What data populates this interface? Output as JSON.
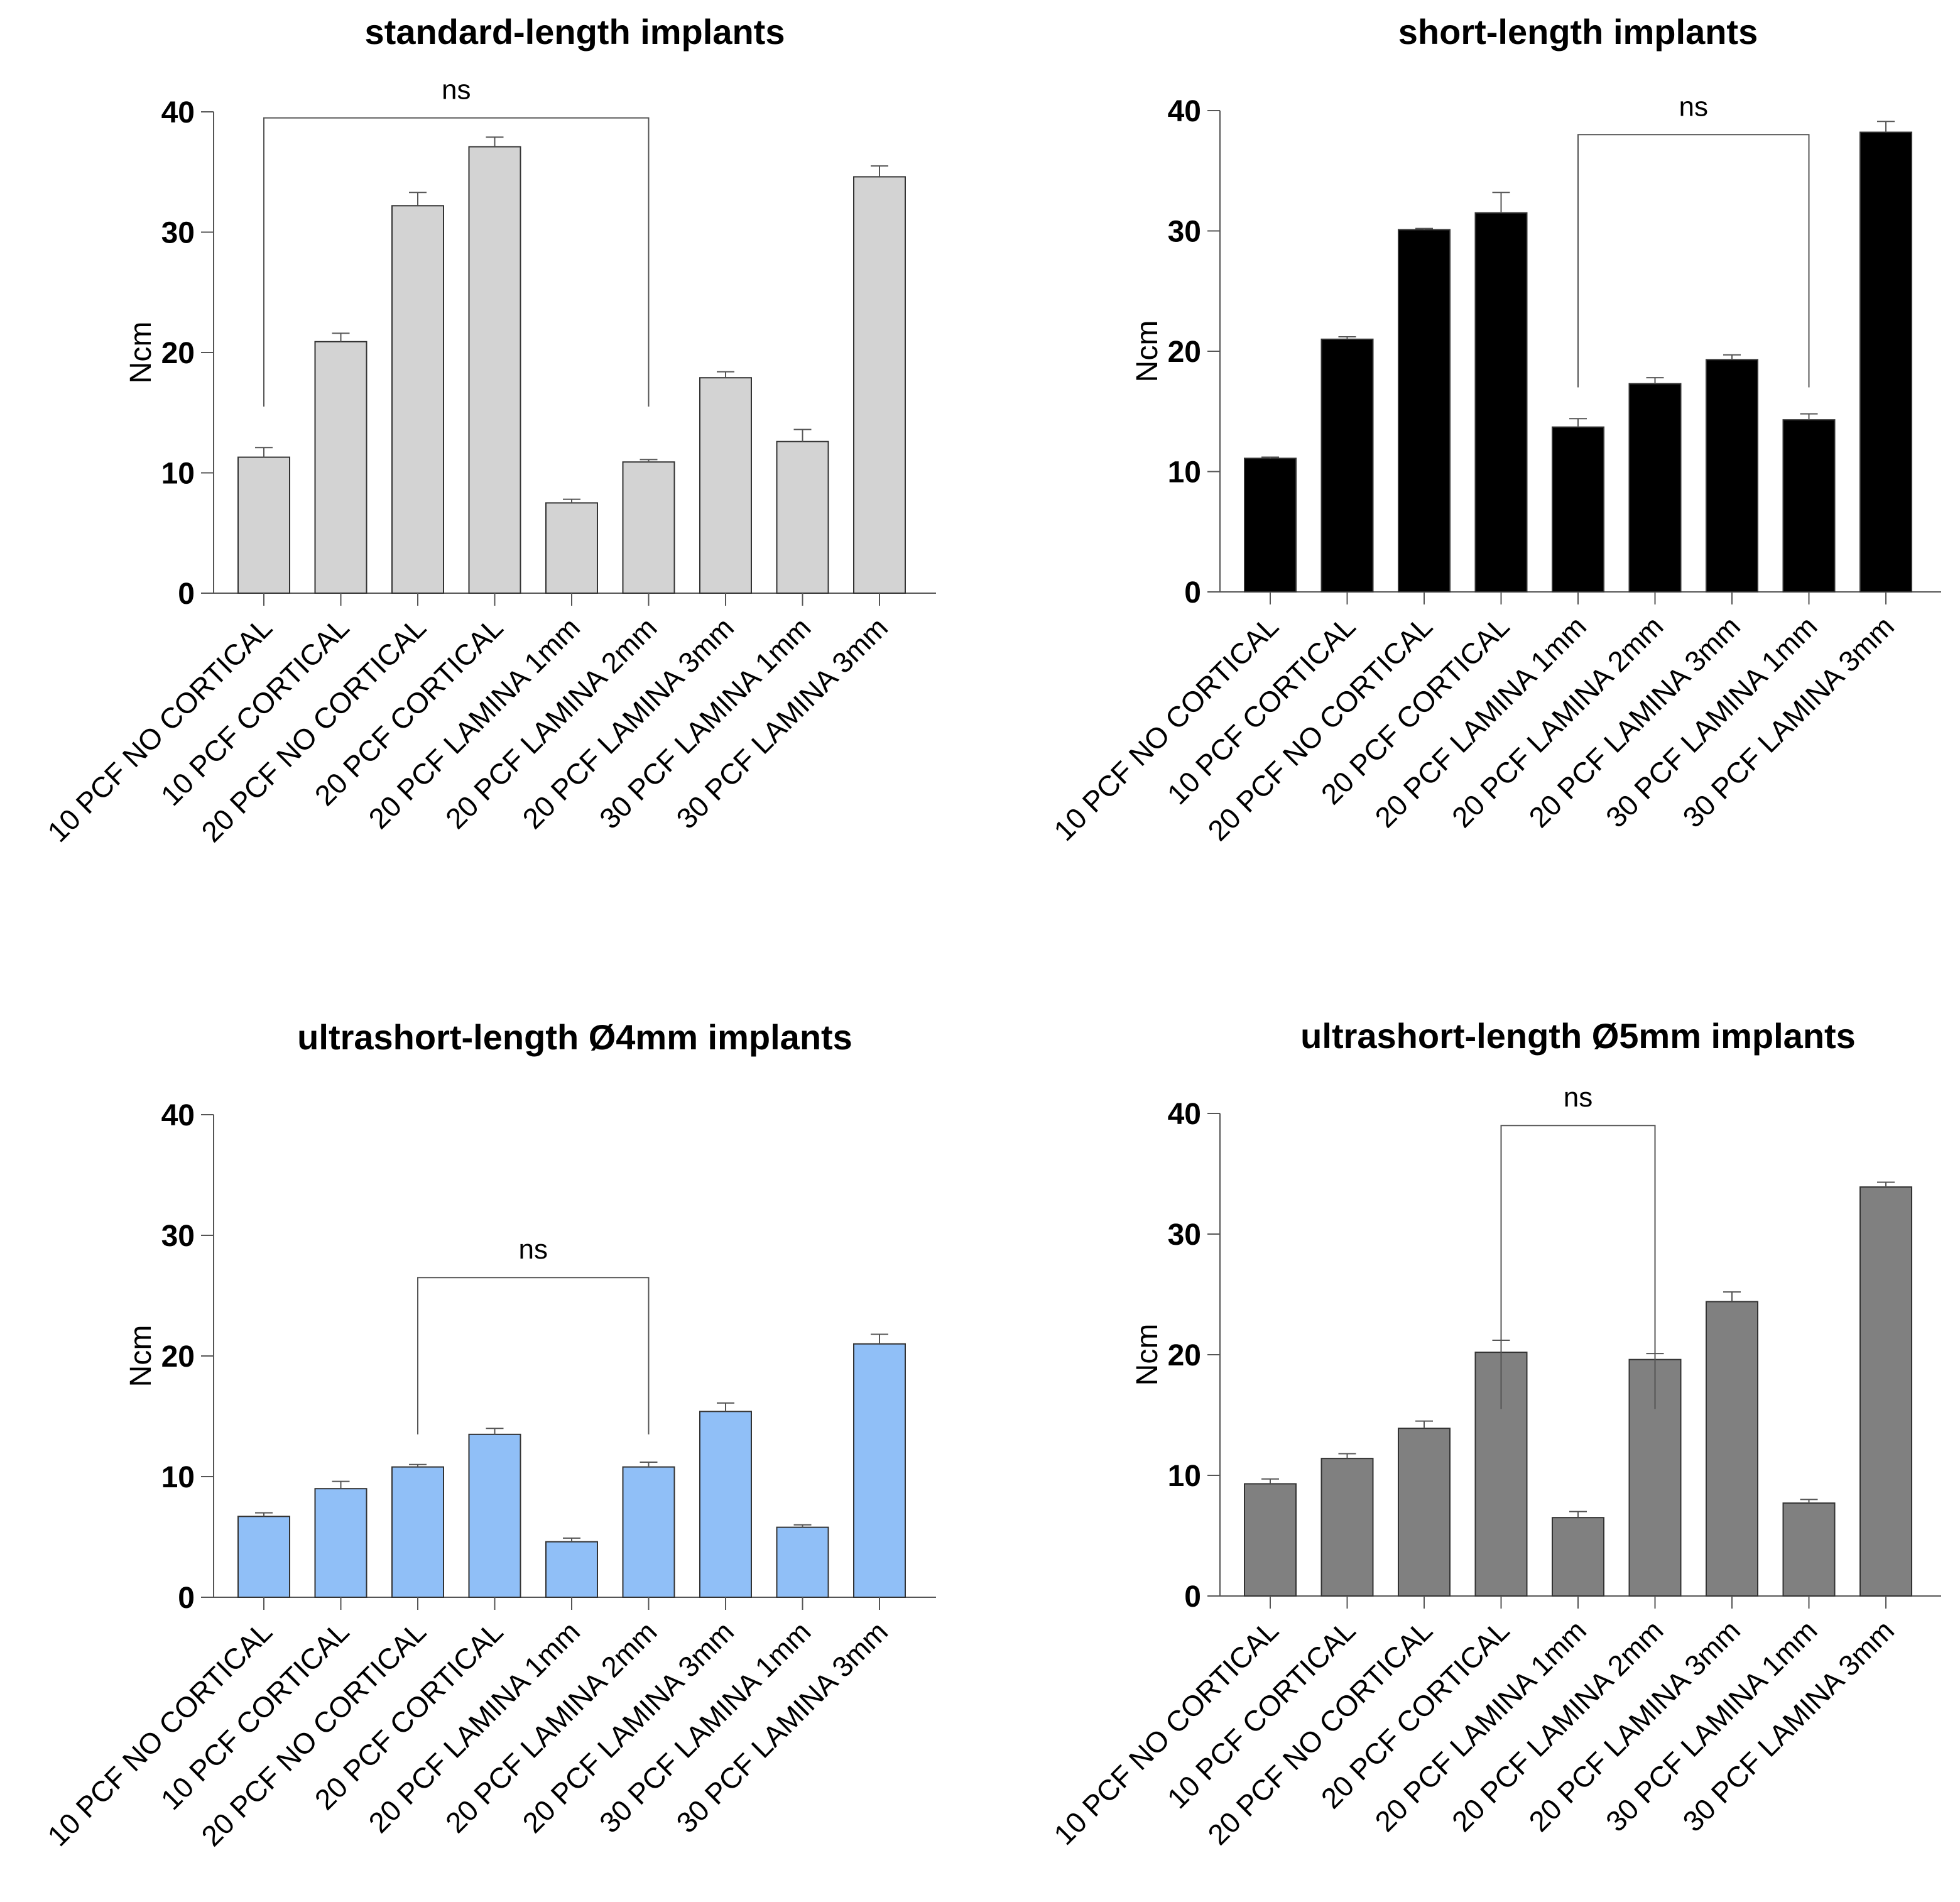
{
  "chart_data": [
    {
      "type": "bar",
      "title": "standard-length implants",
      "ylabel": "Ncm",
      "xlabel": "",
      "ylim": [
        0,
        40
      ],
      "yticks": [
        0,
        10,
        20,
        30,
        40
      ],
      "bar_color": "#d3d3d3",
      "categories": [
        "10 PCF NO CORTICAL",
        "10 PCF CORTICAL",
        "20 PCF NO CORTICAL",
        "20 PCF CORTICAL",
        "20 PCF LAMINA 1mm",
        "20 PCF LAMINA 2mm",
        "20 PCF LAMINA 3mm",
        "30 PCF LAMINA 1mm",
        "30 PCF LAMINA 3mm"
      ],
      "values": [
        11.3,
        20.9,
        32.2,
        37.1,
        7.5,
        10.9,
        17.9,
        12.6,
        34.6
      ],
      "errors": [
        0.8,
        0.7,
        1.1,
        0.8,
        0.3,
        0.2,
        0.5,
        1.0,
        0.9
      ],
      "significance": {
        "label": "ns",
        "from": 0,
        "to": 5,
        "level": 39.5,
        "drop": 15.5
      }
    },
    {
      "type": "bar",
      "title": "short-length implants",
      "ylabel": "Ncm",
      "xlabel": "",
      "ylim": [
        0,
        40
      ],
      "yticks": [
        0,
        10,
        20,
        30,
        40
      ],
      "bar_color": "#000000",
      "categories": [
        "10 PCF NO CORTICAL",
        "10 PCF CORTICAL",
        "20 PCF NO CORTICAL",
        "20 PCF CORTICAL",
        "20 PCF LAMINA 1mm",
        "20 PCF LAMINA 2mm",
        "20 PCF LAMINA 3mm",
        "30 PCF LAMINA 1mm",
        "30 PCF LAMINA 3mm"
      ],
      "values": [
        11.1,
        21.0,
        30.1,
        31.5,
        13.7,
        17.3,
        19.3,
        14.3,
        38.2
      ],
      "errors": [
        0.1,
        0.2,
        0.1,
        1.7,
        0.7,
        0.5,
        0.4,
        0.5,
        0.9
      ],
      "significance": {
        "label": "ns",
        "from": 4,
        "to": 7,
        "level": 38.0,
        "drop": 17.0
      }
    },
    {
      "type": "bar",
      "title": "ultrashort-length Ø4mm implants",
      "ylabel": "Ncm",
      "xlabel": "",
      "ylim": [
        0,
        40
      ],
      "yticks": [
        0,
        10,
        20,
        30,
        40
      ],
      "bar_color": "#90bff7",
      "categories": [
        "10 PCF NO CORTICAL",
        "10 PCF CORTICAL",
        "20 PCF NO CORTICAL",
        "20 PCF CORTICAL",
        "20 PCF LAMINA 1mm",
        "20 PCF LAMINA 2mm",
        "20 PCF LAMINA 3mm",
        "30 PCF LAMINA 1mm",
        "30 PCF LAMINA 3mm"
      ],
      "values": [
        6.7,
        9.0,
        10.8,
        13.5,
        4.6,
        10.8,
        15.4,
        5.8,
        21.0
      ],
      "errors": [
        0.3,
        0.6,
        0.2,
        0.5,
        0.3,
        0.4,
        0.7,
        0.2,
        0.8
      ],
      "significance": {
        "label": "ns",
        "from": 2,
        "to": 5,
        "level": 26.5,
        "drop": 13.5
      }
    },
    {
      "type": "bar",
      "title": "ultrashort-length Ø5mm implants",
      "ylabel": "Ncm",
      "xlabel": "",
      "ylim": [
        0,
        40
      ],
      "yticks": [
        0,
        10,
        20,
        30,
        40
      ],
      "bar_color": "#808080",
      "categories": [
        "10 PCF NO CORTICAL",
        "10 PCF CORTICAL",
        "20 PCF NO CORTICAL",
        "20 PCF CORTICAL",
        "20 PCF LAMINA 1mm",
        "20 PCF LAMINA 2mm",
        "20 PCF LAMINA 3mm",
        "30 PCF LAMINA 1mm",
        "30 PCF LAMINA 3mm"
      ],
      "values": [
        9.3,
        11.4,
        13.9,
        20.2,
        6.5,
        19.6,
        24.4,
        7.7,
        33.9
      ],
      "errors": [
        0.4,
        0.4,
        0.6,
        1.0,
        0.5,
        0.5,
        0.8,
        0.3,
        0.4
      ],
      "significance": {
        "label": "ns",
        "from": 3,
        "to": 5,
        "level": 39.0,
        "drop": 15.5
      }
    }
  ]
}
